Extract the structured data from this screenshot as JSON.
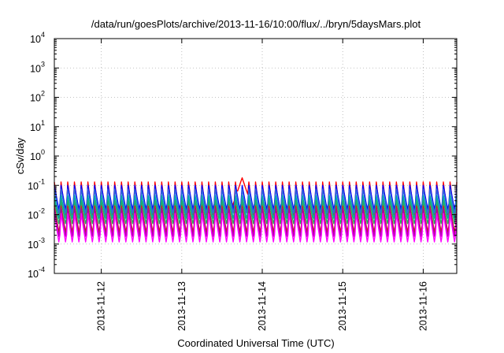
{
  "chart_data": {
    "type": "line",
    "title": "/data/run/goesPlots/archive/2013-11-16/10:00/flux/../bryn/5daysMars.plot",
    "xlabel": "Coordinated Universal Time (UTC)",
    "ylabel": "cSv/day",
    "yscale": "log",
    "ylim": [
      0.0001,
      10000
    ],
    "y_tick_labels": [
      {
        "base": "10",
        "exp": "-4"
      },
      {
        "base": "10",
        "exp": "-3"
      },
      {
        "base": "10",
        "exp": "-2"
      },
      {
        "base": "10",
        "exp": "-1"
      },
      {
        "base": "10",
        "exp": "0"
      },
      {
        "base": "10",
        "exp": "1"
      },
      {
        "base": "10",
        "exp": "2"
      },
      {
        "base": "10",
        "exp": "3"
      },
      {
        "base": "10",
        "exp": "4"
      }
    ],
    "xlim": [
      "2013-11-11T10:00",
      "2013-11-16T10:00"
    ],
    "x_ticks": [
      "2013-11-12",
      "2013-11-13",
      "2013-11-14",
      "2013-11-15",
      "2013-11-16"
    ],
    "grid": true,
    "orbit_period_hours": 2,
    "series": [
      {
        "color": "#ff0000",
        "peak": 0.13,
        "trough": 0.006
      },
      {
        "color": "#0000ff",
        "peak": 0.1,
        "trough": 0.012
      },
      {
        "color": "#3366dd",
        "peak": 0.075,
        "trough": 0.009
      },
      {
        "color": "#00aaaa",
        "peak": 0.045,
        "trough": 0.006
      },
      {
        "color": "#22aa66",
        "peak": 0.03,
        "trough": 0.004
      },
      {
        "color": "#cc2222",
        "peak": 0.02,
        "trough": 0.002
      },
      {
        "color": "#aa00aa",
        "peak": 0.016,
        "trough": 0.0014
      },
      {
        "color": "#ff00ff",
        "peak": 0.011,
        "trough": 0.0009
      }
    ],
    "events": [
      {
        "time": "2013-11-13T18:00",
        "series_peak": 0.18
      }
    ]
  }
}
